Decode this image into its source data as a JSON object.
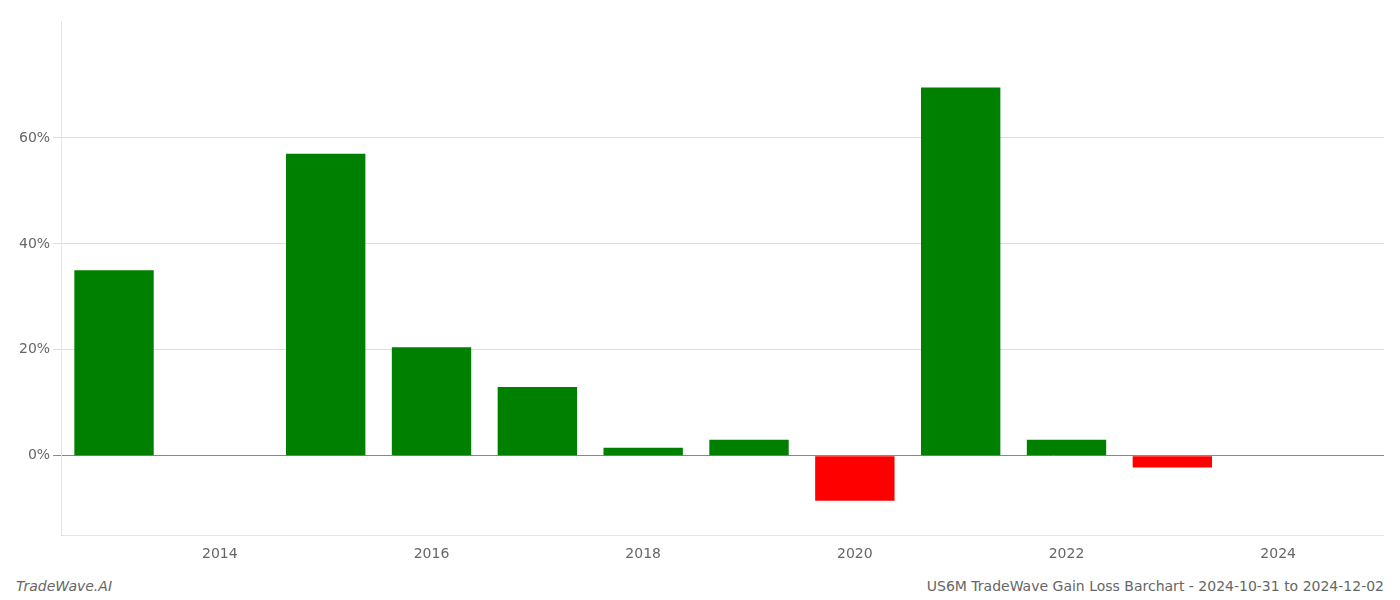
{
  "chart_data": {
    "type": "bar",
    "x": [
      2013,
      2015,
      2016,
      2017,
      2018,
      2019,
      2020,
      2021,
      2022,
      2023
    ],
    "values": [
      0.35,
      0.57,
      0.205,
      0.13,
      0.015,
      0.03,
      -0.085,
      0.695,
      0.03,
      -0.022
    ],
    "colors": [
      "#008000",
      "#008000",
      "#008000",
      "#008000",
      "#008000",
      "#008000",
      "#ff0000",
      "#008000",
      "#008000",
      "#ff0000"
    ],
    "xlim": [
      2012.5,
      2025.0
    ],
    "xticks": [
      2014,
      2016,
      2018,
      2020,
      2022,
      2024
    ],
    "ylim": [
      -0.15,
      0.82
    ],
    "yticks": [
      {
        "value": 0.0,
        "label": "0%"
      },
      {
        "value": 0.2,
        "label": "20%"
      },
      {
        "value": 0.4,
        "label": "40%"
      },
      {
        "value": 0.6,
        "label": "60%"
      }
    ],
    "grid": true,
    "annotations": [
      "TradeWave.AI",
      "US6M TradeWave Gain Loss Barchart - 2024-10-31 to 2024-12-02"
    ]
  }
}
